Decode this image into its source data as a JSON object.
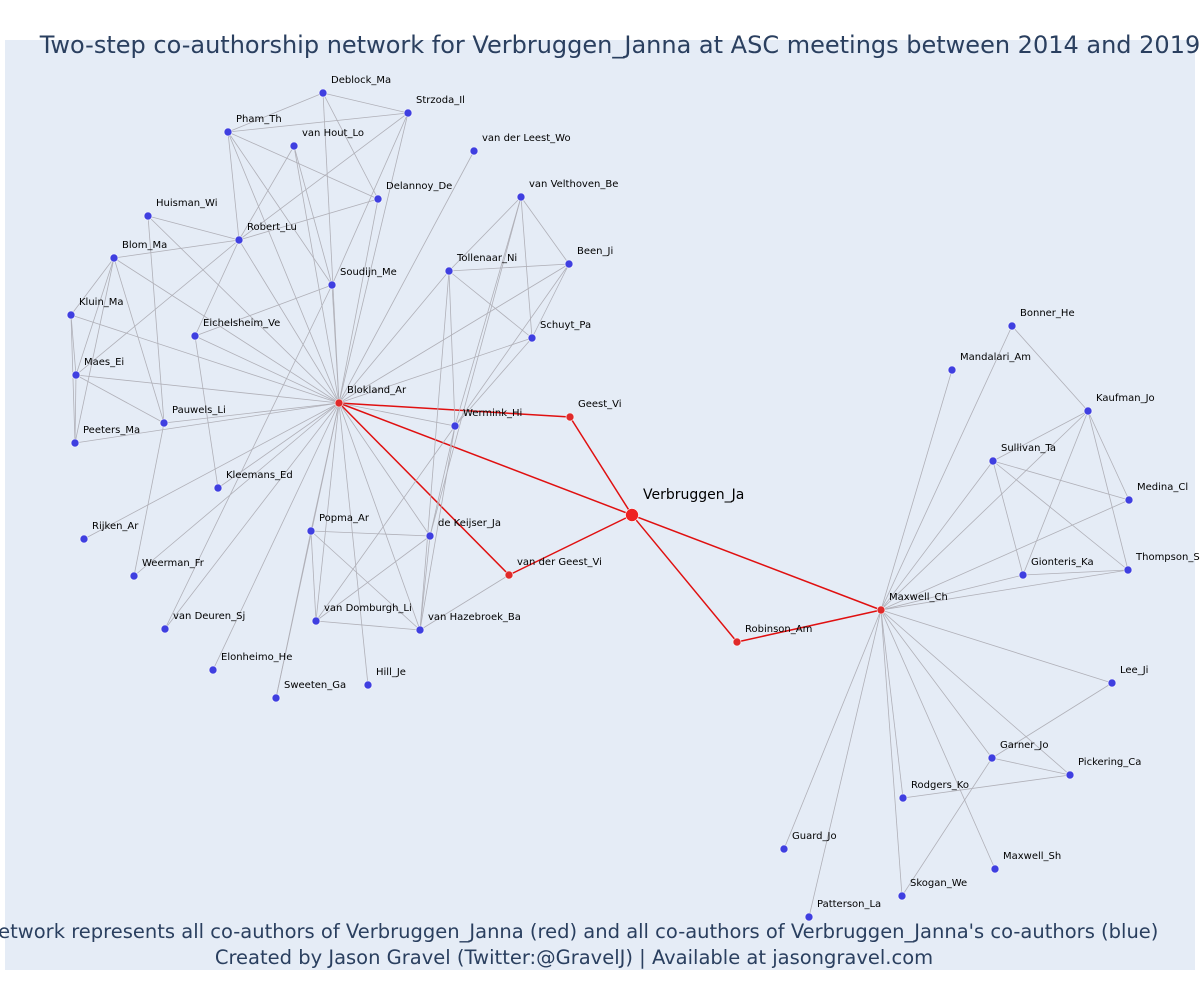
{
  "header": {
    "title": "Two-step co-authorship network for Verbruggen_Janna at ASC meetings between 2014 and 2019"
  },
  "footer": {
    "line1": "Network represents all co-authors of Verbruggen_Janna (red) and all co-authors of Verbruggen_Janna's co-authors (blue)",
    "line2": "Created by Jason Gravel (Twitter:@GravelJ) | Available at jasongravel.com"
  },
  "colors": {
    "focal": "#ee2222",
    "coauthor": "#e02a2a",
    "second": "#3f3fe0"
  },
  "nodes": [
    {
      "label": "Verbruggen_Ja",
      "group": "focal"
    },
    {
      "label": "Blokland_Ar",
      "group": "coauthor"
    },
    {
      "label": "Geest_Vi",
      "group": "coauthor"
    },
    {
      "label": "van der Geest_Vi",
      "group": "coauthor"
    },
    {
      "label": "Robinson_Am",
      "group": "coauthor"
    },
    {
      "label": "Maxwell_Ch",
      "group": "coauthor"
    },
    {
      "label": "Deblock_Ma",
      "group": "second"
    },
    {
      "label": "Strzoda_Il",
      "group": "second"
    },
    {
      "label": "Pham_Th",
      "group": "second"
    },
    {
      "label": "van Hout_Lo",
      "group": "second"
    },
    {
      "label": "van der Leest_Wo",
      "group": "second"
    },
    {
      "label": "Delannoy_De",
      "group": "second"
    },
    {
      "label": "van Velthoven_Be",
      "group": "second"
    },
    {
      "label": "Huisman_Wi",
      "group": "second"
    },
    {
      "label": "Robert_Lu",
      "group": "second"
    },
    {
      "label": "Blom_Ma",
      "group": "second"
    },
    {
      "label": "Been_Ji",
      "group": "second"
    },
    {
      "label": "Tollenaar_Ni",
      "group": "second"
    },
    {
      "label": "Soudijn_Me",
      "group": "second"
    },
    {
      "label": "Kluin_Ma",
      "group": "second"
    },
    {
      "label": "Schuyt_Pa",
      "group": "second"
    },
    {
      "label": "Eichelsheim_Ve",
      "group": "second"
    },
    {
      "label": "Maes_Ei",
      "group": "second"
    },
    {
      "label": "Wermink_Hi",
      "group": "second"
    },
    {
      "label": "Pauwels_Li",
      "group": "second"
    },
    {
      "label": "Peeters_Ma",
      "group": "second"
    },
    {
      "label": "Kleemans_Ed",
      "group": "second"
    },
    {
      "label": "Popma_Ar",
      "group": "second"
    },
    {
      "label": "de Keijser_Ja",
      "group": "second"
    },
    {
      "label": "Rijken_Ar",
      "group": "second"
    },
    {
      "label": "Weerman_Fr",
      "group": "second"
    },
    {
      "label": "van Domburgh_Li",
      "group": "second"
    },
    {
      "label": "van Hazebroek_Ba",
      "group": "second"
    },
    {
      "label": "van Deuren_Sj",
      "group": "second"
    },
    {
      "label": "Elonheimo_He",
      "group": "second"
    },
    {
      "label": "Hill_Je",
      "group": "second"
    },
    {
      "label": "Sweeten_Ga",
      "group": "second"
    },
    {
      "label": "Bonner_He",
      "group": "second"
    },
    {
      "label": "Mandalari_Am",
      "group": "second"
    },
    {
      "label": "Kaufman_Jo",
      "group": "second"
    },
    {
      "label": "Sullivan_Ta",
      "group": "second"
    },
    {
      "label": "Medina_Cl",
      "group": "second"
    },
    {
      "label": "Gionteris_Ka",
      "group": "second"
    },
    {
      "label": "Thompson_S",
      "group": "second"
    },
    {
      "label": "Lee_Ji",
      "group": "second"
    },
    {
      "label": "Garner_Jo",
      "group": "second"
    },
    {
      "label": "Pickering_Ca",
      "group": "second"
    },
    {
      "label": "Rodgers_Ko",
      "group": "second"
    },
    {
      "label": "Guard_Jo",
      "group": "second"
    },
    {
      "label": "Maxwell_Sh",
      "group": "second"
    },
    {
      "label": "Skogan_We",
      "group": "second"
    },
    {
      "label": "Patterson_La",
      "group": "second"
    }
  ],
  "edges": [
    [
      0,
      1
    ],
    [
      0,
      2
    ],
    [
      0,
      3
    ],
    [
      0,
      4
    ],
    [
      0,
      5
    ],
    [
      1,
      2
    ],
    [
      1,
      3
    ],
    [
      4,
      5
    ],
    [
      1,
      6
    ],
    [
      1,
      7
    ],
    [
      1,
      8
    ],
    [
      1,
      9
    ],
    [
      1,
      10
    ],
    [
      1,
      11
    ],
    [
      1,
      13
    ],
    [
      1,
      14
    ],
    [
      1,
      15
    ],
    [
      1,
      18
    ],
    [
      1,
      19
    ],
    [
      1,
      20
    ],
    [
      1,
      21
    ],
    [
      1,
      22
    ],
    [
      1,
      23
    ],
    [
      1,
      24
    ],
    [
      1,
      25
    ],
    [
      1,
      16
    ],
    [
      1,
      17
    ],
    [
      1,
      26
    ],
    [
      1,
      27
    ],
    [
      1,
      28
    ],
    [
      1,
      29
    ],
    [
      1,
      30
    ],
    [
      1,
      31
    ],
    [
      1,
      32
    ],
    [
      1,
      33
    ],
    [
      1,
      34
    ],
    [
      1,
      35
    ],
    [
      1,
      36
    ],
    [
      6,
      7
    ],
    [
      6,
      8
    ],
    [
      6,
      11
    ],
    [
      7,
      8
    ],
    [
      7,
      14
    ],
    [
      7,
      18
    ],
    [
      8,
      11
    ],
    [
      8,
      14
    ],
    [
      9,
      14
    ],
    [
      9,
      18
    ],
    [
      11,
      14
    ],
    [
      8,
      18
    ],
    [
      13,
      24
    ],
    [
      13,
      14
    ],
    [
      15,
      14
    ],
    [
      15,
      19
    ],
    [
      15,
      22
    ],
    [
      15,
      24
    ],
    [
      15,
      25
    ],
    [
      14,
      22
    ],
    [
      14,
      21
    ],
    [
      19,
      22
    ],
    [
      19,
      25
    ],
    [
      22,
      25
    ],
    [
      22,
      24
    ],
    [
      21,
      26
    ],
    [
      21,
      18
    ],
    [
      18,
      33
    ],
    [
      24,
      30
    ],
    [
      12,
      17
    ],
    [
      12,
      16
    ],
    [
      12,
      20
    ],
    [
      12,
      23
    ],
    [
      17,
      16
    ],
    [
      17,
      20
    ],
    [
      17,
      23
    ],
    [
      16,
      20
    ],
    [
      16,
      23
    ],
    [
      20,
      23
    ],
    [
      12,
      28
    ],
    [
      17,
      32
    ],
    [
      23,
      28
    ],
    [
      23,
      32
    ],
    [
      23,
      31
    ],
    [
      27,
      28
    ],
    [
      27,
      31
    ],
    [
      27,
      32
    ],
    [
      28,
      31
    ],
    [
      28,
      32
    ],
    [
      31,
      32
    ],
    [
      32,
      3
    ],
    [
      27,
      36
    ],
    [
      5,
      37
    ],
    [
      5,
      38
    ],
    [
      5,
      39
    ],
    [
      5,
      40
    ],
    [
      5,
      41
    ],
    [
      5,
      42
    ],
    [
      5,
      43
    ],
    [
      5,
      44
    ],
    [
      5,
      45
    ],
    [
      5,
      46
    ],
    [
      5,
      47
    ],
    [
      5,
      48
    ],
    [
      5,
      49
    ],
    [
      5,
      50
    ],
    [
      5,
      51
    ],
    [
      37,
      39
    ],
    [
      39,
      40
    ],
    [
      39,
      41
    ],
    [
      39,
      42
    ],
    [
      39,
      43
    ],
    [
      40,
      41
    ],
    [
      40,
      42
    ],
    [
      40,
      43
    ],
    [
      42,
      43
    ],
    [
      45,
      44
    ],
    [
      45,
      50
    ],
    [
      47,
      46
    ],
    [
      45,
      46
    ]
  ]
}
